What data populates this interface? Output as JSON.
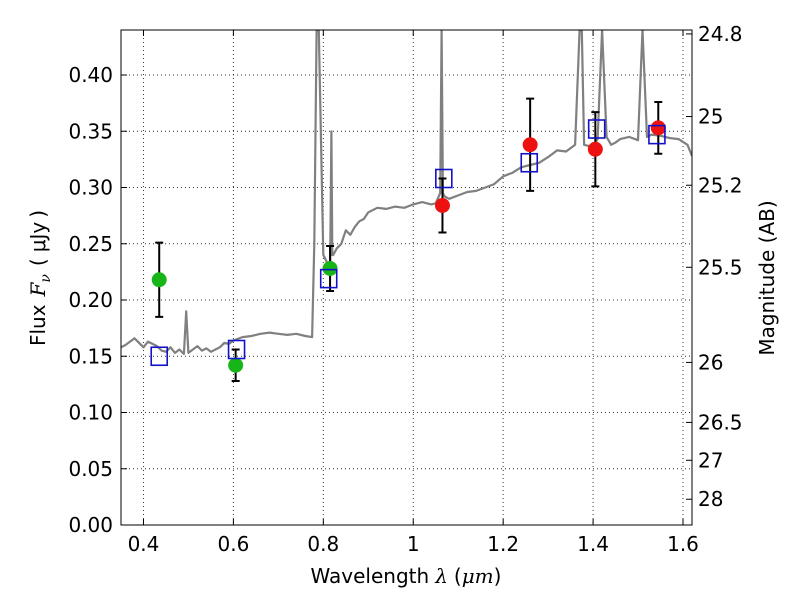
{
  "chart_data": {
    "type": "scatter",
    "xlabel_prefix": "Wavelength",
    "xlabel_symbol": "λ",
    "xlabel_unit_open": "(",
    "xlabel_unit": "μm",
    "xlabel_unit_close": ")",
    "ylabel_prefix": "Flux",
    "ylabel_symbol": "F",
    "ylabel_subscript": "ν",
    "ylabel_unit_open": "(",
    "ylabel_unit": "μJy",
    "ylabel_unit_close": ")",
    "y2label": "Magnitude (AB)",
    "xlim": [
      0.35,
      1.62
    ],
    "ylim": [
      0.0,
      0.44
    ],
    "grid": true,
    "xticks": [
      0.4,
      0.6,
      0.8,
      1.0,
      1.2,
      1.4,
      1.6
    ],
    "xtick_labels": [
      "0.4",
      "0.6",
      "0.8",
      "1",
      "1.2",
      "1.4",
      "1.6"
    ],
    "yticks": [
      0.0,
      0.05,
      0.1,
      0.15,
      0.2,
      0.25,
      0.3,
      0.35,
      0.4
    ],
    "ytick_labels": [
      "0.00",
      "0.05",
      "0.10",
      "0.15",
      "0.20",
      "0.25",
      "0.30",
      "0.35",
      "0.40"
    ],
    "mag_ticks": [
      24.8,
      25,
      25.2,
      25.5,
      26,
      26.5,
      27,
      28
    ],
    "mag_tick_labels": [
      "24.8",
      "25",
      "25.2",
      "25.5",
      "26",
      "26.5",
      "27",
      "28"
    ],
    "colors": {
      "model": "#808080",
      "green": "#18b518",
      "red": "#ee1111",
      "square": "#1111cc",
      "errorbar": "#000000"
    },
    "model_spectrum": {
      "x": [
        0.35,
        0.36,
        0.37,
        0.38,
        0.39,
        0.4,
        0.41,
        0.42,
        0.43,
        0.44,
        0.45,
        0.46,
        0.47,
        0.48,
        0.49,
        0.495,
        0.5,
        0.51,
        0.52,
        0.53,
        0.54,
        0.55,
        0.56,
        0.57,
        0.58,
        0.59,
        0.6,
        0.62,
        0.64,
        0.66,
        0.68,
        0.7,
        0.72,
        0.74,
        0.76,
        0.775,
        0.78,
        0.785,
        0.79,
        0.8,
        0.81,
        0.815,
        0.818,
        0.82,
        0.822,
        0.83,
        0.84,
        0.85,
        0.86,
        0.87,
        0.88,
        0.89,
        0.9,
        0.92,
        0.94,
        0.96,
        0.98,
        1.0,
        1.02,
        1.04,
        1.05,
        1.06,
        1.063,
        1.066,
        1.07,
        1.08,
        1.1,
        1.12,
        1.14,
        1.16,
        1.18,
        1.2,
        1.22,
        1.24,
        1.26,
        1.28,
        1.3,
        1.32,
        1.34,
        1.36,
        1.37,
        1.375,
        1.38,
        1.39,
        1.4,
        1.41,
        1.42,
        1.43,
        1.44,
        1.45,
        1.46,
        1.48,
        1.5,
        1.51,
        1.52,
        1.53,
        1.55,
        1.57,
        1.59,
        1.61,
        1.62
      ],
      "y": [
        0.158,
        0.16,
        0.163,
        0.166,
        0.162,
        0.158,
        0.163,
        0.161,
        0.159,
        0.155,
        0.154,
        0.158,
        0.153,
        0.156,
        0.152,
        0.19,
        0.153,
        0.156,
        0.159,
        0.155,
        0.157,
        0.154,
        0.156,
        0.158,
        0.162,
        0.161,
        0.164,
        0.167,
        0.168,
        0.17,
        0.171,
        0.17,
        0.169,
        0.17,
        0.168,
        0.167,
        0.25,
        0.44,
        0.44,
        0.24,
        0.232,
        0.225,
        0.35,
        0.24,
        0.24,
        0.246,
        0.25,
        0.262,
        0.258,
        0.265,
        0.27,
        0.272,
        0.278,
        0.282,
        0.281,
        0.283,
        0.282,
        0.285,
        0.287,
        0.285,
        0.286,
        0.295,
        0.44,
        0.295,
        0.292,
        0.29,
        0.293,
        0.296,
        0.297,
        0.3,
        0.303,
        0.31,
        0.313,
        0.318,
        0.32,
        0.322,
        0.327,
        0.333,
        0.332,
        0.338,
        0.44,
        0.44,
        0.338,
        0.337,
        0.337,
        0.343,
        0.44,
        0.345,
        0.338,
        0.34,
        0.343,
        0.345,
        0.342,
        0.44,
        0.345,
        0.347,
        0.346,
        0.344,
        0.343,
        0.338,
        0.328
      ]
    },
    "errorbar_points": [
      {
        "x": 0.435,
        "y": 0.218,
        "err": 0.033,
        "color": "green"
      },
      {
        "x": 0.605,
        "y": 0.142,
        "err": 0.014,
        "color": "green"
      },
      {
        "x": 0.815,
        "y": 0.228,
        "err": 0.02,
        "color": "green"
      },
      {
        "x": 1.065,
        "y": 0.284,
        "err": 0.024,
        "color": "red"
      },
      {
        "x": 1.26,
        "y": 0.338,
        "err": 0.041,
        "color": "red"
      },
      {
        "x": 1.405,
        "y": 0.334,
        "err": 0.033,
        "color": "red"
      },
      {
        "x": 1.545,
        "y": 0.353,
        "err": 0.023,
        "color": "red"
      }
    ],
    "model_squares": [
      {
        "x": 0.435,
        "y": 0.15
      },
      {
        "x": 0.607,
        "y": 0.156
      },
      {
        "x": 0.812,
        "y": 0.219
      },
      {
        "x": 1.068,
        "y": 0.308
      },
      {
        "x": 1.258,
        "y": 0.322
      },
      {
        "x": 1.408,
        "y": 0.352
      },
      {
        "x": 1.542,
        "y": 0.347
      }
    ]
  }
}
